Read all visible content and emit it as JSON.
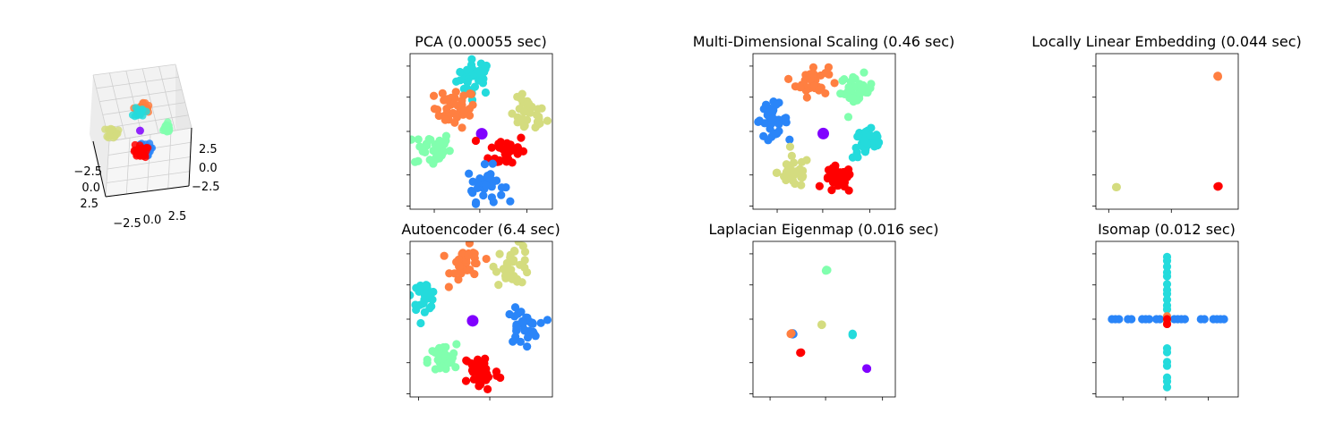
{
  "figure": {
    "background": "#ffffff",
    "cluster_colors": {
      "purple": "#8000ff",
      "blue": "#2a85f8",
      "cyan": "#24dbdc",
      "green": "#81ffae",
      "yellow": "#d4dc7f",
      "orange": "#ff7f41",
      "red": "#ff0000"
    }
  },
  "chart_data": [
    {
      "type": "scatter",
      "projection": "3d",
      "title": "",
      "x_ticks": [
        "−2.5",
        "0.0",
        "2.5"
      ],
      "y_ticks": [
        "−2.5",
        "0.0",
        "2.5"
      ],
      "z_ticks": [
        "2.5",
        "0.0",
        "−2.5"
      ],
      "xlim": [
        -4,
        4
      ],
      "ylim": [
        -4,
        4
      ],
      "grid": true,
      "clusters": [
        {
          "color": "purple",
          "x": 0,
          "y": 0,
          "spread": 0.05,
          "n": 1
        },
        {
          "color": "orange",
          "x": 0.3,
          "y": 2.3,
          "spread": 0.35,
          "n": 25
        },
        {
          "color": "cyan",
          "x": -0.1,
          "y": 2.0,
          "spread": 0.3,
          "n": 15
        },
        {
          "color": "yellow",
          "x": -3.0,
          "y": -0.2,
          "spread": 0.3,
          "n": 25
        },
        {
          "color": "green",
          "x": 2.7,
          "y": 0.2,
          "spread": 0.3,
          "n": 25
        },
        {
          "color": "blue",
          "x": 0.4,
          "y": -2.0,
          "spread": 0.35,
          "n": 25
        },
        {
          "color": "red",
          "x": 0.0,
          "y": -2.2,
          "spread": 0.35,
          "n": 30
        }
      ]
    },
    {
      "type": "scatter",
      "title": "PCA (0.00055 sec)",
      "xlim": [
        -3.5,
        3.5
      ],
      "ylim": [
        -4,
        4
      ],
      "clusters": [
        {
          "color": "cyan",
          "x": -0.3,
          "y": 2.8,
          "spread": 0.45,
          "n": 35
        },
        {
          "color": "orange",
          "x": -1.3,
          "y": 1.2,
          "spread": 0.5,
          "n": 35
        },
        {
          "color": "yellow",
          "x": 2.3,
          "y": 0.8,
          "spread": 0.45,
          "n": 35
        },
        {
          "color": "purple",
          "x": 0.0,
          "y": -0.05,
          "spread": 0.05,
          "n": 1
        },
        {
          "color": "green",
          "x": -2.4,
          "y": -0.9,
          "spread": 0.45,
          "n": 35
        },
        {
          "color": "red",
          "x": 1.3,
          "y": -1.0,
          "spread": 0.45,
          "n": 35
        },
        {
          "color": "blue",
          "x": 0.2,
          "y": -2.7,
          "spread": 0.45,
          "n": 35
        }
      ]
    },
    {
      "type": "scatter",
      "title": "Multi-Dimensional Scaling (0.46 sec)",
      "xlim": [
        -3.5,
        3.5
      ],
      "ylim": [
        -4,
        4
      ],
      "clusters": [
        {
          "color": "orange",
          "x": -0.6,
          "y": 2.6,
          "spread": 0.4,
          "n": 35
        },
        {
          "color": "green",
          "x": 1.6,
          "y": 2.1,
          "spread": 0.4,
          "n": 35
        },
        {
          "color": "blue",
          "x": -2.6,
          "y": 0.6,
          "spread": 0.4,
          "n": 35
        },
        {
          "color": "purple",
          "x": 0.0,
          "y": -0.05,
          "spread": 0.05,
          "n": 1
        },
        {
          "color": "cyan",
          "x": 2.2,
          "y": -0.6,
          "spread": 0.4,
          "n": 35
        },
        {
          "color": "yellow",
          "x": -1.5,
          "y": -2.1,
          "spread": 0.4,
          "n": 35
        },
        {
          "color": "red",
          "x": 0.7,
          "y": -2.5,
          "spread": 0.35,
          "n": 35
        }
      ]
    },
    {
      "type": "scatter",
      "title": "Locally Linear Embedding (0.044 sec)",
      "xlim": [
        -0.2,
        1.2
      ],
      "ylim": [
        -0.2,
        1.2
      ],
      "clusters": [
        {
          "color": "orange",
          "x": 1.0,
          "y": 1.0,
          "spread": 0.005,
          "n": 3
        },
        {
          "color": "yellow",
          "x": 0.0,
          "y": 0.0,
          "spread": 0.005,
          "n": 3
        },
        {
          "color": "red",
          "x": 1.0,
          "y": 0.0,
          "spread": 0.005,
          "n": 3
        }
      ]
    },
    {
      "type": "scatter",
      "title": "Autoencoder (6.4 sec)",
      "xlim": [
        -4,
        4
      ],
      "ylim": [
        -4,
        4
      ],
      "clusters": [
        {
          "color": "orange",
          "x": -0.8,
          "y": 2.8,
          "spread": 0.45,
          "n": 35
        },
        {
          "color": "yellow",
          "x": 1.8,
          "y": 2.8,
          "spread": 0.5,
          "n": 35
        },
        {
          "color": "cyan",
          "x": -3.2,
          "y": 1.2,
          "spread": 0.35,
          "n": 30
        },
        {
          "color": "purple",
          "x": -0.6,
          "y": 0.0,
          "spread": 0.05,
          "n": 1
        },
        {
          "color": "blue",
          "x": 2.3,
          "y": -0.4,
          "spread": 0.45,
          "n": 35
        },
        {
          "color": "green",
          "x": -2.2,
          "y": -2.1,
          "spread": 0.4,
          "n": 35
        },
        {
          "color": "red",
          "x": 0.0,
          "y": -2.7,
          "spread": 0.5,
          "n": 45
        }
      ]
    },
    {
      "type": "scatter",
      "title": "Laplacian Eigenmap (0.016 sec)",
      "xlim": [
        -1.5,
        1.5
      ],
      "ylim": [
        -1.5,
        1.5
      ],
      "clusters": [
        {
          "color": "green",
          "x": 0.05,
          "y": 0.95,
          "spread": 0.01,
          "n": 3
        },
        {
          "color": "yellow",
          "x": -0.05,
          "y": -0.1,
          "spread": 0.01,
          "n": 3
        },
        {
          "color": "blue",
          "x": -0.65,
          "y": -0.28,
          "spread": 0.01,
          "n": 3
        },
        {
          "color": "orange",
          "x": -0.7,
          "y": -0.28,
          "spread": 0.01,
          "n": 3
        },
        {
          "color": "cyan",
          "x": 0.6,
          "y": -0.28,
          "spread": 0.01,
          "n": 3
        },
        {
          "color": "red",
          "x": -0.5,
          "y": -0.65,
          "spread": 0.01,
          "n": 3
        },
        {
          "color": "purple",
          "x": 0.9,
          "y": -0.95,
          "spread": 0.01,
          "n": 3
        }
      ]
    },
    {
      "type": "scatter",
      "title": "Isomap (0.012 sec)",
      "xlim": [
        -4,
        4
      ],
      "ylim": [
        -4,
        4
      ],
      "points": [
        {
          "color": "blue",
          "x": -3.1,
          "y": 0
        },
        {
          "color": "blue",
          "x": -2.9,
          "y": 0
        },
        {
          "color": "blue",
          "x": -2.7,
          "y": 0
        },
        {
          "color": "blue",
          "x": -2.2,
          "y": 0
        },
        {
          "color": "blue",
          "x": -2.0,
          "y": 0
        },
        {
          "color": "blue",
          "x": -1.4,
          "y": 0
        },
        {
          "color": "blue",
          "x": -1.2,
          "y": 0
        },
        {
          "color": "blue",
          "x": -1.0,
          "y": 0
        },
        {
          "color": "blue",
          "x": -0.6,
          "y": 0
        },
        {
          "color": "blue",
          "x": -0.4,
          "y": 0
        },
        {
          "color": "blue",
          "x": 0.4,
          "y": 0
        },
        {
          "color": "blue",
          "x": 0.6,
          "y": 0
        },
        {
          "color": "blue",
          "x": 0.8,
          "y": 0
        },
        {
          "color": "blue",
          "x": 1.0,
          "y": 0
        },
        {
          "color": "blue",
          "x": 1.9,
          "y": 0
        },
        {
          "color": "blue",
          "x": 2.1,
          "y": 0
        },
        {
          "color": "blue",
          "x": 2.6,
          "y": 0
        },
        {
          "color": "blue",
          "x": 2.8,
          "y": 0
        },
        {
          "color": "blue",
          "x": 3.0,
          "y": 0
        },
        {
          "color": "blue",
          "x": 3.2,
          "y": 0
        },
        {
          "color": "cyan",
          "x": 0,
          "y": 3.2
        },
        {
          "color": "cyan",
          "x": 0,
          "y": 3.0
        },
        {
          "color": "cyan",
          "x": 0,
          "y": 2.7
        },
        {
          "color": "cyan",
          "x": 0,
          "y": 2.4
        },
        {
          "color": "cyan",
          "x": 0,
          "y": 2.2
        },
        {
          "color": "cyan",
          "x": 0,
          "y": 1.8
        },
        {
          "color": "cyan",
          "x": 0,
          "y": 1.5
        },
        {
          "color": "cyan",
          "x": 0,
          "y": 1.3
        },
        {
          "color": "cyan",
          "x": 0,
          "y": 1.0
        },
        {
          "color": "cyan",
          "x": 0,
          "y": 0.7
        },
        {
          "color": "cyan",
          "x": 0,
          "y": 0.5
        },
        {
          "color": "cyan",
          "x": 0,
          "y": -1.5
        },
        {
          "color": "cyan",
          "x": 0,
          "y": -1.7
        },
        {
          "color": "cyan",
          "x": 0,
          "y": -2.2
        },
        {
          "color": "cyan",
          "x": 0,
          "y": -2.4
        },
        {
          "color": "cyan",
          "x": 0,
          "y": -3.0
        },
        {
          "color": "cyan",
          "x": 0,
          "y": -3.2
        },
        {
          "color": "cyan",
          "x": 0,
          "y": -3.5
        },
        {
          "color": "orange",
          "x": 0,
          "y": 0.15
        },
        {
          "color": "green",
          "x": 0,
          "y": -0.1
        },
        {
          "color": "red",
          "x": 0,
          "y": 0.0
        },
        {
          "color": "red",
          "x": 0,
          "y": -0.25
        }
      ]
    }
  ]
}
